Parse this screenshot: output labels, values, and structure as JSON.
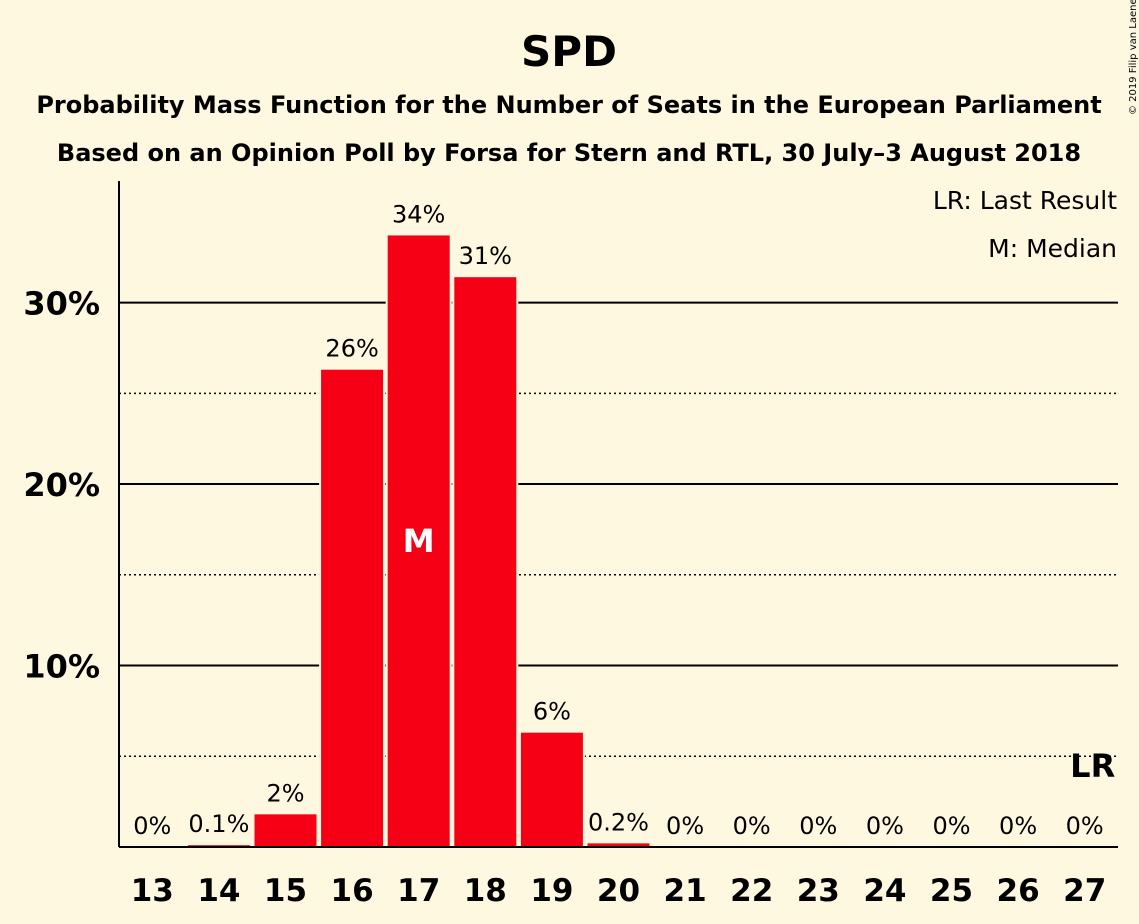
{
  "chart_data": {
    "type": "bar",
    "title": "SPD",
    "subtitle_lines": [
      "Probability Mass Function for the Number of Seats in the European Parliament",
      "Based on an Opinion Poll by Forsa for Stern and RTL, 30 July–3 August 2018"
    ],
    "copyright": "© 2019 Filip van Laenen",
    "legend": [
      "LR: Last Result",
      "M: Median"
    ],
    "categories": [
      "13",
      "14",
      "15",
      "16",
      "17",
      "18",
      "19",
      "20",
      "21",
      "22",
      "23",
      "24",
      "25",
      "26",
      "27"
    ],
    "values": [
      0,
      0.1,
      1.8,
      26.3,
      33.7,
      31.4,
      6.3,
      0.2,
      0,
      0,
      0,
      0,
      0,
      0,
      0
    ],
    "labels": [
      "0%",
      "0.1%",
      "2%",
      "26%",
      "34%",
      "31%",
      "6%",
      "0.2%",
      "0%",
      "0%",
      "0%",
      "0%",
      "0%",
      "0%",
      "0%"
    ],
    "ylim": [
      0,
      36.7
    ],
    "yticks": [
      10,
      20,
      30
    ],
    "ytick_labels": [
      "10%",
      "20%",
      "30%"
    ],
    "minor_grid": [
      5,
      15,
      25
    ],
    "median_category": "17",
    "median_marker": "M",
    "last_result_category": "27",
    "last_result_marker": "LR",
    "bar_color": "#f50014",
    "grid": true
  }
}
